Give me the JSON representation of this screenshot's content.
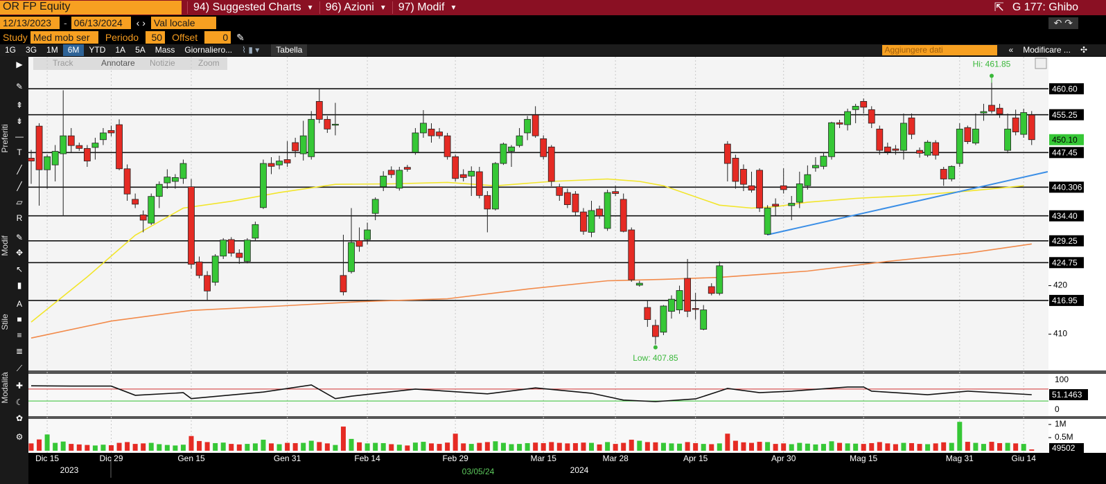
{
  "ui": {
    "ticker": "OR FP Equity",
    "menu": [
      "94) Suggested Charts",
      "96) Azioni",
      "97) Modif"
    ],
    "user": "G 177: Ghibo",
    "start_date": "12/13/2023",
    "end_date": "06/13/2024",
    "currency": "Val locale",
    "study_label": "Study",
    "study": "Med mob ser",
    "period_label": "Periodo",
    "period": 50,
    "offset_label": "Offset",
    "offset": 0,
    "ranges": [
      "1G",
      "3G",
      "1M",
      "6M",
      "YTD",
      "1A",
      "5A",
      "Mass",
      "Giornaliero..."
    ],
    "table": "Tabella",
    "add_data": "Aggiungere dati",
    "modify": "Modificare ...",
    "side_labels": [
      "Preferiti",
      "Modif",
      "Stile",
      "Modalità"
    ],
    "tools": [
      "Track",
      "Annotare",
      "Notizie",
      "Zoom"
    ]
  },
  "chart_data": {
    "type": "candlestick",
    "grid": true,
    "up_color": "#36c736",
    "down_color": "#e52b24",
    "categories": [
      null,
      null,
      "Dic 15",
      null,
      null,
      null,
      null,
      null,
      null,
      null,
      "Dic 29",
      null,
      null,
      null,
      null,
      null,
      null,
      null,
      null,
      null,
      "Gen 15",
      null,
      null,
      null,
      null,
      null,
      null,
      null,
      null,
      null,
      null,
      null,
      "Gen 31",
      null,
      null,
      null,
      null,
      null,
      null,
      null,
      null,
      null,
      "Feb 14",
      null,
      null,
      null,
      null,
      null,
      null,
      null,
      null,
      null,
      null,
      "Feb 29",
      null,
      null,
      null,
      null,
      null,
      null,
      null,
      null,
      null,
      null,
      "Mar 15",
      null,
      null,
      null,
      null,
      null,
      null,
      null,
      null,
      "Mar 28",
      null,
      null,
      null,
      null,
      null,
      null,
      null,
      null,
      null,
      "Apr 15",
      null,
      null,
      null,
      null,
      null,
      null,
      null,
      null,
      null,
      null,
      "Apr 30",
      null,
      null,
      null,
      null,
      null,
      null,
      null,
      null,
      null,
      "Mag 15",
      null,
      null,
      null,
      null,
      null,
      null,
      null,
      null,
      null,
      null,
      null,
      "Mag 31",
      null,
      null,
      null,
      null,
      null,
      null,
      null,
      "Giu 14",
      null
    ],
    "open": [
      446.3,
      452.9,
      443.9,
      444.9,
      447.2,
      450.9,
      448.9,
      448.3,
      448.5,
      450.1,
      452.0,
      453.2,
      444.1,
      437.8,
      434.6,
      432.9,
      438.4,
      441.2,
      441.5,
      442.1,
      440.4,
      424.9,
      422.1,
      420.7,
      426.1,
      429.5,
      426.7,
      425.0,
      429.8,
      436.1,
      445.2,
      444.9,
      446.0,
      449.5,
      447.2,
      446.6,
      458.0,
      454.3,
      453.2,
      422.1,
      422.9,
      429.3,
      429.5,
      434.9,
      440.4,
      443.8,
      440.1,
      444.4,
      447.5,
      451.5,
      452.3,
      451.7,
      450.9,
      446.6,
      442.9,
      442.6,
      443.5,
      438.6,
      435.8,
      445.2,
      447.7,
      448.9,
      451.5,
      455.2,
      450.3,
      448.6,
      440.4,
      439.2,
      438.9,
      435.2,
      431.0,
      435.8,
      431.8,
      439.4,
      437.8,
      431.5,
      420.1,
      415.5,
      411.8,
      410.4,
      414.7,
      415.0,
      421.5,
      415.3,
      411.0,
      419.8,
      418.4,
      449.2,
      446.3,
      444.0,
      440.6,
      443.8,
      430.6,
      436.8,
      440.6,
      436.5,
      437.2,
      440.6,
      444.3,
      444.6,
      446.6,
      453.6,
      453.2,
      456.3,
      458.0,
      456.3,
      452.3,
      448.6,
      448.2,
      447.9,
      454.6,
      447.9,
      446.9,
      449.5,
      444.0,
      442.0,
      445.2,
      452.6,
      449.4,
      455.6,
      457.2,
      456.6,
      447.9,
      454.6,
      451.2,
      455.2
    ],
    "high": [
      448.0,
      453.5,
      447.0,
      449.0,
      460.3,
      452.5,
      449.5,
      449.0,
      450.5,
      452.5,
      453.0,
      454.3,
      445.0,
      439.0,
      435.5,
      439.0,
      441.5,
      444.0,
      443.0,
      446.0,
      442.0,
      426.0,
      423.0,
      426.5,
      429.8,
      430.0,
      427.5,
      429.8,
      433.2,
      446.0,
      446.5,
      446.8,
      449.8,
      450.5,
      454.0,
      456.0,
      460.6,
      455.0,
      457.7,
      430.5,
      436.0,
      432.0,
      433.0,
      438.2,
      443.6,
      444.6,
      444.5,
      444.9,
      452.5,
      456.2,
      453.5,
      452.5,
      451.5,
      447.0,
      444.0,
      444.6,
      444.5,
      439.5,
      445.5,
      449.5,
      449.0,
      452.5,
      455.0,
      457.0,
      451.0,
      449.0,
      441.0,
      440.0,
      439.5,
      436.0,
      437.5,
      436.5,
      439.8,
      440.6,
      439.0,
      432.0,
      421.0,
      417.0,
      413.0,
      416.0,
      418.0,
      420.0,
      425.5,
      418.5,
      416.0,
      420.5,
      425.0,
      449.8,
      447.0,
      445.0,
      443.5,
      444.2,
      436.6,
      438.0,
      444.2,
      438.5,
      443.5,
      444.8,
      446.5,
      447.5,
      453.8,
      454.2,
      456.5,
      457.5,
      458.6,
      457.0,
      453.0,
      449.5,
      449.0,
      455.5,
      455.5,
      448.5,
      450.0,
      450.0,
      444.5,
      444.8,
      453.5,
      453.0,
      455.5,
      457.5,
      461.85,
      457.5,
      455.5,
      456.3,
      456.5,
      456.0
    ],
    "low": [
      441.0,
      436.5,
      440.0,
      441.5,
      434.3,
      447.5,
      447.8,
      444.5,
      446.0,
      449.0,
      450.8,
      443.8,
      437.5,
      436.0,
      431.0,
      432.5,
      436.0,
      440.0,
      440.0,
      441.0,
      423.5,
      421.5,
      417.0,
      420.0,
      425.5,
      426.0,
      424.5,
      424.6,
      429.2,
      435.8,
      443.0,
      444.0,
      444.5,
      446.5,
      445.8,
      446.0,
      453.5,
      451.5,
      451.0,
      418.0,
      422.5,
      427.0,
      428.5,
      433.5,
      439.5,
      442.2,
      439.6,
      443.5,
      447.0,
      450.5,
      449.5,
      450.3,
      446.0,
      441.5,
      441.5,
      438.5,
      438.0,
      431.0,
      435.5,
      444.9,
      444.5,
      448.5,
      450.0,
      450.5,
      446.0,
      440.5,
      437.5,
      436.0,
      434.5,
      430.5,
      430.0,
      433.8,
      431.3,
      438.5,
      431.0,
      420.8,
      419.8,
      411.5,
      407.85,
      409.8,
      413.2,
      414.2,
      413.5,
      413.0,
      410.8,
      418.0,
      418.0,
      441.5,
      440.0,
      439.5,
      439.2,
      435.2,
      430.4,
      434.5,
      439.0,
      433.5,
      436.0,
      439.8,
      443.5,
      444.0,
      446.0,
      452.5,
      452.0,
      453.5,
      455.5,
      452.5,
      447.0,
      447.0,
      447.0,
      446.0,
      450.2,
      446.4,
      446.5,
      446.0,
      440.6,
      441.5,
      444.5,
      449.2,
      449.0,
      454.0,
      455.5,
      454.6,
      447.3,
      451.0,
      450.5,
      449.0
    ],
    "close": [
      445.7,
      443.9,
      446.6,
      447.7,
      450.9,
      448.9,
      448.3,
      445.7,
      449.4,
      451.5,
      451.5,
      444.1,
      438.9,
      436.8,
      433.5,
      438.4,
      440.9,
      442.4,
      442.3,
      445.2,
      424.4,
      422.1,
      418.9,
      426.1,
      429.4,
      426.7,
      425.8,
      429.4,
      432.6,
      445.2,
      444.6,
      445.7,
      445.3,
      447.8,
      450.9,
      454.3,
      454.3,
      452.3,
      453.3,
      418.7,
      428.9,
      428.1,
      431.5,
      437.8,
      442.6,
      442.9,
      443.8,
      444.0,
      451.5,
      453.5,
      450.9,
      450.9,
      446.6,
      442.1,
      442.3,
      443.6,
      438.6,
      435.8,
      445.2,
      449.2,
      448.6,
      450.9,
      454.3,
      450.9,
      446.6,
      441.5,
      438.6,
      436.7,
      435.2,
      431.2,
      435.5,
      434.4,
      439.2,
      439.0,
      431.2,
      421.2,
      420.5,
      413.0,
      409.5,
      415.8,
      417.2,
      419.0,
      414.7,
      415.1,
      415.0,
      418.4,
      424.1,
      445.2,
      441.5,
      440.9,
      439.7,
      436.0,
      436.0,
      436.4,
      439.8,
      437.0,
      441.0,
      442.9,
      444.8,
      446.7,
      453.6,
      453.3,
      455.9,
      457.0,
      456.8,
      453.5,
      447.9,
      447.6,
      447.9,
      453.5,
      451.2,
      447.3,
      449.6,
      446.9,
      442.0,
      444.6,
      452.3,
      449.7,
      452.3,
      455.9,
      456.0,
      455.4,
      452.3,
      451.7,
      455.7,
      450.1
    ],
    "close_label": "450.10",
    "hi_label": "Hi: 461.85",
    "low_label": "Low: 407.85",
    "ylim": [
      402.8,
      467.2
    ],
    "yticks": [
      410,
      420
    ],
    "levels": [
      {
        "value": 460.6,
        "label": "460.60"
      },
      455.25,
      447.45,
      440.306,
      {
        "value": 434.4,
        "label": "434.40"
      },
      429.25,
      424.75,
      416.95
    ],
    "moving_averages": [
      {
        "color": "#f2e52a",
        "x": [
          0,
          7,
          13,
          19,
          25,
          31,
          38,
          45,
          52,
          58,
          65,
          72,
          76,
          79,
          86,
          90,
          93,
          97,
          103,
          110,
          117,
          124
        ],
        "values": [
          412.5,
          421.8,
          430.4,
          436,
          437.4,
          439.2,
          440.9,
          441,
          441.3,
          440.6,
          441.5,
          442,
          441.5,
          440.6,
          436.6,
          436,
          436.3,
          437.2,
          438,
          438.6,
          439.5,
          440.6
        ]
      },
      {
        "color": "#f28a4a",
        "x": [
          0,
          10,
          20,
          31,
          41,
          52,
          62,
          72,
          79,
          86,
          97,
          107,
          117,
          125
        ],
        "values": [
          409.2,
          412.7,
          414.9,
          415.8,
          416.7,
          417.3,
          419.3,
          421,
          421.3,
          421.7,
          423,
          425,
          426.7,
          428.6
        ]
      }
    ],
    "trend_line": {
      "color": "#3a8ee6",
      "x": [
        92,
        127
      ],
      "values": [
        430.5,
        443.5
      ]
    },
    "rsi": {
      "ylim": [
        -18.6,
        118.6
      ],
      "yticks": [
        0,
        100
      ],
      "upper": 70,
      "lower": 30,
      "upper_color": "#d03030",
      "lower_color": "#30c030",
      "x": [
        0,
        5,
        10,
        13,
        19,
        20,
        29,
        35,
        38,
        40,
        48,
        57,
        63,
        70,
        74,
        78,
        83,
        86,
        87,
        91,
        95,
        102,
        104,
        105,
        112,
        117,
        125
      ],
      "values": [
        81,
        80,
        80,
        49,
        58,
        38,
        60,
        84,
        38,
        46,
        70,
        54,
        74,
        56,
        33,
        28,
        37,
        63,
        72,
        58,
        63,
        77,
        77,
        63,
        51,
        63,
        51.1463
      ]
    },
    "volume": {
      "ylim": [
        -80000,
        1185000
      ],
      "yticks": [
        {
          "value": 1000000,
          "label": "1M"
        },
        {
          "value": 500000,
          "label": "0.5M"
        }
      ],
      "values": [
        280000,
        430000,
        620000,
        300000,
        350000,
        260000,
        240000,
        220000,
        200000,
        230000,
        210000,
        300000,
        330000,
        260000,
        280000,
        300000,
        250000,
        220000,
        200000,
        230000,
        560000,
        370000,
        330000,
        290000,
        310000,
        260000,
        240000,
        260000,
        280000,
        420000,
        280000,
        250000,
        300000,
        290000,
        300000,
        380000,
        330000,
        280000,
        220000,
        920000,
        450000,
        320000,
        280000,
        300000,
        290000,
        250000,
        230000,
        200000,
        310000,
        340000,
        280000,
        260000,
        310000,
        650000,
        280000,
        260000,
        300000,
        330000,
        360000,
        300000,
        250000,
        260000,
        290000,
        310000,
        290000,
        330000,
        300000,
        280000,
        290000,
        310000,
        300000,
        240000,
        330000,
        260000,
        300000,
        420000,
        380000,
        330000,
        320000,
        300000,
        280000,
        270000,
        330000,
        290000,
        260000,
        250000,
        280000,
        650000,
        380000,
        320000,
        300000,
        340000,
        330000,
        260000,
        280000,
        250000,
        300000,
        270000,
        240000,
        260000,
        360000,
        300000,
        280000,
        270000,
        260000,
        290000,
        330000,
        280000,
        250000,
        300000,
        290000,
        260000,
        250000,
        280000,
        320000,
        300000,
        1100000,
        340000,
        300000,
        260000,
        340000,
        290000,
        300000,
        280000,
        260000,
        49502
      ]
    },
    "years": [
      "2023",
      "2024"
    ],
    "cursor_date": "03/05/24"
  }
}
